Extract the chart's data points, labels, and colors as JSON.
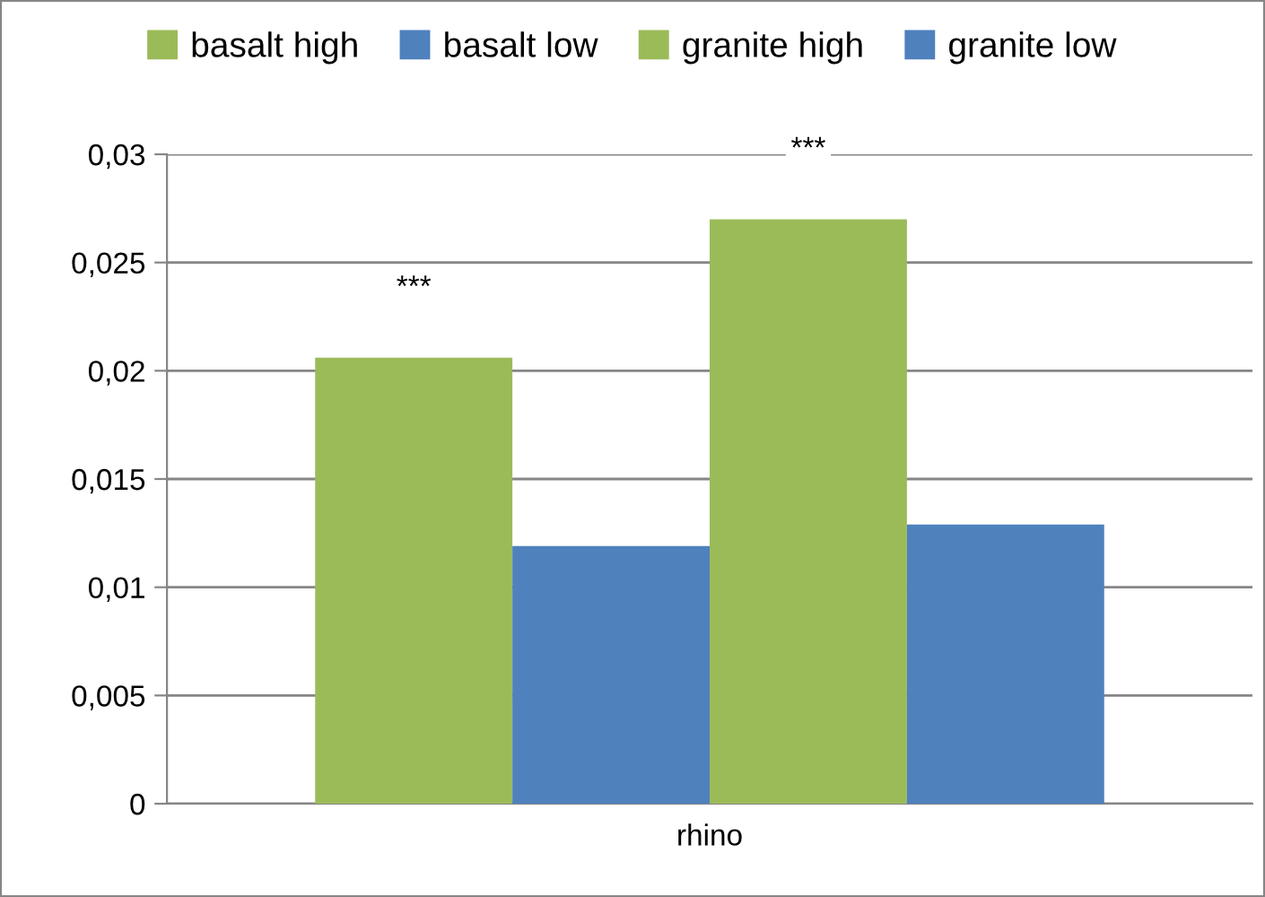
{
  "chart_data": {
    "type": "bar",
    "categories": [
      "rhino"
    ],
    "series": [
      {
        "name": "basalt high",
        "color": "#9bbb59",
        "values": [
          0.0206
        ]
      },
      {
        "name": "basalt low",
        "color": "#4f81bd",
        "values": [
          0.0119
        ]
      },
      {
        "name": "granite high",
        "color": "#9bbb59",
        "values": [
          0.027
        ]
      },
      {
        "name": "granite low",
        "color": "#4f81bd",
        "values": [
          0.0129
        ]
      }
    ],
    "ylim": [
      0,
      0.03
    ],
    "yticks": [
      {
        "value": 0,
        "label": "0"
      },
      {
        "value": 0.005,
        "label": "0,005"
      },
      {
        "value": 0.01,
        "label": "0,01"
      },
      {
        "value": 0.015,
        "label": "0,015"
      },
      {
        "value": 0.02,
        "label": "0,02"
      },
      {
        "value": 0.025,
        "label": "0,025"
      },
      {
        "value": 0.03,
        "label": "0,03"
      }
    ],
    "annotations": [
      "***",
      "***"
    ],
    "grid": "y",
    "legend": "top"
  }
}
